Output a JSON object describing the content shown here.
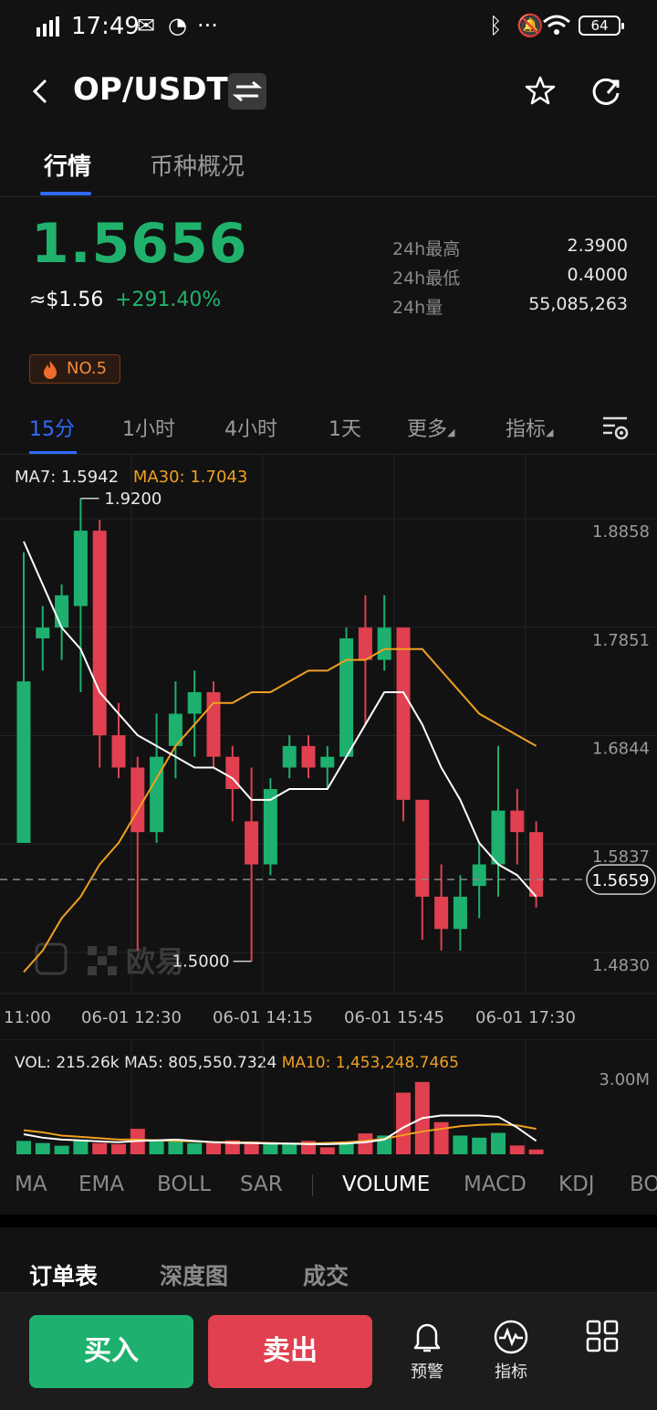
{
  "status_bar": {
    "time": "17:49",
    "battery": "64"
  },
  "header": {
    "pair": "OP/USDT"
  },
  "top_tabs": [
    "行情",
    "币种概况"
  ],
  "ticker": {
    "price": "1.5656",
    "usd": "≈$1.56",
    "change": "+291.40%",
    "stats": [
      {
        "label": "24h最高",
        "value": "2.3900"
      },
      {
        "label": "24h最低",
        "value": "0.4000"
      },
      {
        "label": "24h量",
        "value": "55,085,263"
      }
    ],
    "rank": "NO.5"
  },
  "timeframes": [
    "15分",
    "1小时",
    "4小时",
    "1天",
    "更多",
    "指标"
  ],
  "chart": {
    "ma7_label": "MA7: 1.5942",
    "ma30_label": "MA30: 1.7043",
    "price_ticks": [
      "1.8858",
      "1.7851",
      "1.6844",
      "1.5837",
      "1.4830"
    ],
    "current_price_tag": "1.5659",
    "high_label": "1.9200",
    "low_label": "1.5000",
    "time_ticks": [
      "11:00",
      "06-01 12:30",
      "06-01 14:15",
      "06-01 15:45",
      "06-01 17:30"
    ],
    "watermark": "欧易",
    "colors": {
      "up": "#1db06e",
      "down": "#e0404f",
      "ma7": "#ffffff",
      "ma30": "#f0a020"
    }
  },
  "chart_data": {
    "type": "candlestick",
    "y_range": [
      1.46,
      1.93
    ],
    "candles": [
      {
        "o": 1.6,
        "h": 1.87,
        "l": 1.6,
        "c": 1.75
      },
      {
        "o": 1.79,
        "h": 1.82,
        "l": 1.76,
        "c": 1.8
      },
      {
        "o": 1.8,
        "h": 1.84,
        "l": 1.77,
        "c": 1.83
      },
      {
        "o": 1.82,
        "h": 1.92,
        "l": 1.74,
        "c": 1.89
      },
      {
        "o": 1.89,
        "h": 1.9,
        "l": 1.67,
        "c": 1.7
      },
      {
        "o": 1.7,
        "h": 1.73,
        "l": 1.66,
        "c": 1.67
      },
      {
        "o": 1.67,
        "h": 1.68,
        "l": 1.5,
        "c": 1.61
      },
      {
        "o": 1.61,
        "h": 1.72,
        "l": 1.6,
        "c": 1.68
      },
      {
        "o": 1.69,
        "h": 1.75,
        "l": 1.66,
        "c": 1.72
      },
      {
        "o": 1.72,
        "h": 1.76,
        "l": 1.68,
        "c": 1.74
      },
      {
        "o": 1.74,
        "h": 1.75,
        "l": 1.67,
        "c": 1.68
      },
      {
        "o": 1.68,
        "h": 1.69,
        "l": 1.62,
        "c": 1.65
      },
      {
        "o": 1.62,
        "h": 1.67,
        "l": 1.49,
        "c": 1.58
      },
      {
        "o": 1.58,
        "h": 1.66,
        "l": 1.57,
        "c": 1.65
      },
      {
        "o": 1.67,
        "h": 1.7,
        "l": 1.66,
        "c": 1.69
      },
      {
        "o": 1.69,
        "h": 1.7,
        "l": 1.66,
        "c": 1.67
      },
      {
        "o": 1.67,
        "h": 1.69,
        "l": 1.65,
        "c": 1.68
      },
      {
        "o": 1.68,
        "h": 1.8,
        "l": 1.68,
        "c": 1.79
      },
      {
        "o": 1.8,
        "h": 1.83,
        "l": 1.71,
        "c": 1.77
      },
      {
        "o": 1.77,
        "h": 1.83,
        "l": 1.76,
        "c": 1.8
      },
      {
        "o": 1.8,
        "h": 1.8,
        "l": 1.62,
        "c": 1.64
      },
      {
        "o": 1.64,
        "h": 1.64,
        "l": 1.51,
        "c": 1.55
      },
      {
        "o": 1.55,
        "h": 1.58,
        "l": 1.5,
        "c": 1.52
      },
      {
        "o": 1.52,
        "h": 1.57,
        "l": 1.5,
        "c": 1.55
      },
      {
        "o": 1.56,
        "h": 1.6,
        "l": 1.53,
        "c": 1.58
      },
      {
        "o": 1.58,
        "h": 1.69,
        "l": 1.55,
        "c": 1.63
      },
      {
        "o": 1.63,
        "h": 1.65,
        "l": 1.58,
        "c": 1.61
      },
      {
        "o": 1.61,
        "h": 1.62,
        "l": 1.54,
        "c": 1.55
      }
    ],
    "ma7": [
      1.88,
      1.84,
      1.8,
      1.78,
      1.74,
      1.72,
      1.7,
      1.69,
      1.68,
      1.67,
      1.67,
      1.66,
      1.64,
      1.64,
      1.65,
      1.65,
      1.65,
      1.68,
      1.71,
      1.74,
      1.74,
      1.71,
      1.67,
      1.64,
      1.6,
      1.58,
      1.57,
      1.55
    ],
    "ma30": [
      1.48,
      1.5,
      1.53,
      1.55,
      1.58,
      1.6,
      1.63,
      1.66,
      1.69,
      1.71,
      1.73,
      1.73,
      1.74,
      1.74,
      1.75,
      1.76,
      1.76,
      1.77,
      1.77,
      1.78,
      1.78,
      1.78,
      1.76,
      1.74,
      1.72,
      1.71,
      1.7,
      1.69
    ],
    "volume": {
      "legend": "VOL: 215.26k",
      "ma5_label": "MA5: 805,550.7324",
      "ma10_label": "MA10: 1,453,248.7465",
      "y_max_label": "3.00M",
      "y_max": 3000000,
      "values": [
        500000,
        420000,
        320000,
        500000,
        420000,
        380000,
        950000,
        480000,
        500000,
        420000,
        420000,
        520000,
        480000,
        400000,
        380000,
        500000,
        260000,
        380000,
        780000,
        700000,
        2300000,
        2700000,
        1200000,
        700000,
        620000,
        800000,
        330000,
        180000
      ],
      "down": [
        false,
        false,
        false,
        false,
        true,
        true,
        true,
        false,
        false,
        false,
        true,
        true,
        true,
        false,
        false,
        true,
        true,
        false,
        true,
        false,
        true,
        true,
        true,
        false,
        false,
        false,
        true,
        true
      ],
      "ma5": [
        0.75,
        0.62,
        0.55,
        0.52,
        0.48,
        0.45,
        0.5,
        0.52,
        0.55,
        0.5,
        0.45,
        0.42,
        0.42,
        0.4,
        0.4,
        0.38,
        0.38,
        0.4,
        0.45,
        0.55,
        1.0,
        1.35,
        1.45,
        1.45,
        1.45,
        1.4,
        1.0,
        0.5
      ],
      "ma10": [
        0.9,
        0.82,
        0.7,
        0.65,
        0.6,
        0.55,
        0.55,
        0.52,
        0.5,
        0.48,
        0.45,
        0.45,
        0.44,
        0.42,
        0.4,
        0.4,
        0.42,
        0.45,
        0.5,
        0.58,
        0.72,
        0.85,
        0.95,
        1.05,
        1.1,
        1.12,
        1.08,
        0.95
      ]
    }
  },
  "indicators": [
    "MA",
    "EMA",
    "BOLL",
    "SAR",
    "VOLUME",
    "MACD",
    "KDJ",
    "BOLL"
  ],
  "book_tabs": [
    "订单表",
    "深度图",
    "成交"
  ],
  "actions": {
    "buy": "买入",
    "sell": "卖出",
    "alert": "预警",
    "more": "指标"
  }
}
